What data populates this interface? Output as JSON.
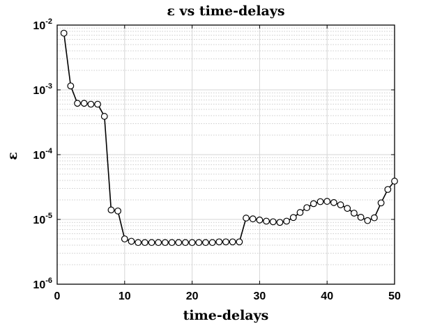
{
  "chart_data": {
    "type": "line",
    "title": "ε vs time-delays",
    "xlabel": "time-delays",
    "ylabel": "ε",
    "xlim": [
      0,
      50
    ],
    "ylim": [
      1e-06,
      0.01
    ],
    "yscale": "log",
    "grid": true,
    "legend": "none",
    "x_ticks": [
      {
        "value": 0,
        "label": "0"
      },
      {
        "value": 10,
        "label": "10"
      },
      {
        "value": 20,
        "label": "20"
      },
      {
        "value": 30,
        "label": "30"
      },
      {
        "value": 40,
        "label": "40"
      },
      {
        "value": 50,
        "label": "50"
      }
    ],
    "y_ticks": [
      {
        "value": 1e-06,
        "base": "10",
        "exp": "-6"
      },
      {
        "value": 1e-05,
        "base": "10",
        "exp": "-5"
      },
      {
        "value": 0.0001,
        "base": "10",
        "exp": "-4"
      },
      {
        "value": 0.001,
        "base": "10",
        "exp": "-3"
      },
      {
        "value": 0.01,
        "base": "10",
        "exp": "-2"
      }
    ],
    "series": [
      {
        "line_color": "#000000",
        "marker": "circle",
        "marker_fill": "#ffffff",
        "x": [
          1,
          2,
          3,
          4,
          5,
          6,
          7,
          8,
          9,
          10,
          11,
          12,
          13,
          14,
          15,
          16,
          17,
          18,
          19,
          20,
          21,
          22,
          23,
          24,
          25,
          26,
          27,
          28,
          29,
          30,
          31,
          32,
          33,
          34,
          35,
          36,
          37,
          38,
          39,
          40,
          41,
          42,
          43,
          44,
          45,
          46,
          47,
          48,
          49,
          50
        ],
        "y": [
          0.0075,
          0.00115,
          0.00062,
          0.00062,
          0.0006,
          0.0006,
          0.00039,
          1.4e-05,
          1.35e-05,
          5e-06,
          4.6e-06,
          4.4e-06,
          4.4e-06,
          4.4e-06,
          4.4e-06,
          4.4e-06,
          4.4e-06,
          4.4e-06,
          4.4e-06,
          4.4e-06,
          4.4e-06,
          4.4e-06,
          4.4e-06,
          4.5e-06,
          4.5e-06,
          4.5e-06,
          4.5e-06,
          1.05e-05,
          1.02e-05,
          9.8e-06,
          9.4e-06,
          9.2e-06,
          9e-06,
          9.4e-06,
          1.07e-05,
          1.28e-05,
          1.52e-05,
          1.75e-05,
          1.88e-05,
          1.9e-05,
          1.82e-05,
          1.68e-05,
          1.48e-05,
          1.25e-05,
          1.08e-05,
          9.6e-06,
          1.06e-05,
          1.8e-05,
          2.9e-05,
          3.9e-05
        ]
      }
    ]
  }
}
